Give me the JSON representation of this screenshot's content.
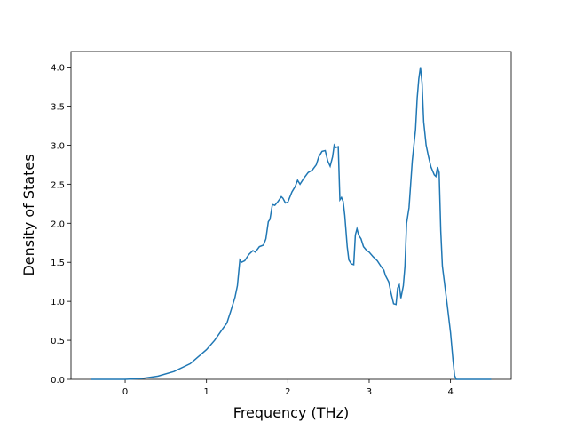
{
  "chart_data": {
    "type": "line",
    "xlabel": "Frequency (THz)",
    "ylabel": "Density of States",
    "x": [
      -0.42,
      0,
      0.2,
      0.4,
      0.6,
      0.8,
      1.0,
      1.1,
      1.2,
      1.25,
      1.3,
      1.35,
      1.38,
      1.41,
      1.43,
      1.47,
      1.52,
      1.57,
      1.6,
      1.65,
      1.7,
      1.73,
      1.76,
      1.78,
      1.81,
      1.84,
      1.88,
      1.92,
      1.94,
      1.97,
      2.0,
      2.05,
      2.09,
      2.12,
      2.15,
      2.2,
      2.25,
      2.3,
      2.35,
      2.38,
      2.42,
      2.46,
      2.49,
      2.52,
      2.55,
      2.57,
      2.59,
      2.62,
      2.64,
      2.66,
      2.68,
      2.7,
      2.73,
      2.75,
      2.78,
      2.81,
      2.83,
      2.85,
      2.87,
      2.9,
      2.93,
      2.97,
      3.0,
      3.05,
      3.1,
      3.15,
      3.18,
      3.2,
      3.24,
      3.27,
      3.3,
      3.33,
      3.35,
      3.37,
      3.39,
      3.42,
      3.44,
      3.46,
      3.49,
      3.53,
      3.57,
      3.59,
      3.61,
      3.63,
      3.65,
      3.67,
      3.7,
      3.73,
      3.76,
      3.8,
      3.82,
      3.84,
      3.86,
      3.88,
      3.9,
      3.93,
      3.96,
      4.0,
      4.03,
      4.05,
      4.07,
      4.5
    ],
    "series": [
      {
        "name": "DOS",
        "color": "#1f77b4",
        "values": [
          0,
          0,
          0.01,
          0.04,
          0.1,
          0.2,
          0.38,
          0.5,
          0.65,
          0.72,
          0.88,
          1.05,
          1.2,
          1.53,
          1.5,
          1.52,
          1.6,
          1.65,
          1.63,
          1.7,
          1.72,
          1.8,
          2.02,
          2.05,
          2.24,
          2.23,
          2.28,
          2.34,
          2.32,
          2.26,
          2.27,
          2.4,
          2.47,
          2.55,
          2.5,
          2.58,
          2.65,
          2.68,
          2.75,
          2.85,
          2.92,
          2.93,
          2.8,
          2.73,
          2.85,
          3.0,
          2.97,
          2.98,
          2.3,
          2.33,
          2.28,
          2.1,
          1.7,
          1.53,
          1.48,
          1.47,
          1.85,
          1.93,
          1.85,
          1.8,
          1.7,
          1.65,
          1.63,
          1.57,
          1.52,
          1.44,
          1.4,
          1.33,
          1.25,
          1.1,
          0.97,
          0.96,
          1.17,
          1.21,
          1.04,
          1.2,
          1.45,
          2.0,
          2.2,
          2.8,
          3.2,
          3.6,
          3.85,
          4.0,
          3.8,
          3.3,
          3.0,
          2.85,
          2.72,
          2.62,
          2.6,
          2.72,
          2.65,
          1.9,
          1.45,
          1.2,
          0.95,
          0.6,
          0.25,
          0.05,
          0,
          0
        ]
      }
    ],
    "xlim": [
      -0.666,
      4.746
    ],
    "ylim": [
      0,
      4.2
    ],
    "xticks": [
      0,
      1,
      2,
      3,
      4
    ],
    "yticks": [
      {
        "value": 0,
        "label": "0.0"
      },
      {
        "value": 0.5,
        "label": "0.5"
      },
      {
        "value": 1,
        "label": "1.0"
      },
      {
        "value": 1.5,
        "label": "1.5"
      },
      {
        "value": 2,
        "label": "2.0"
      },
      {
        "value": 2.5,
        "label": "2.5"
      },
      {
        "value": 3,
        "label": "3.0"
      },
      {
        "value": 3.5,
        "label": "3.5"
      },
      {
        "value": 4,
        "label": "4.0"
      }
    ]
  }
}
